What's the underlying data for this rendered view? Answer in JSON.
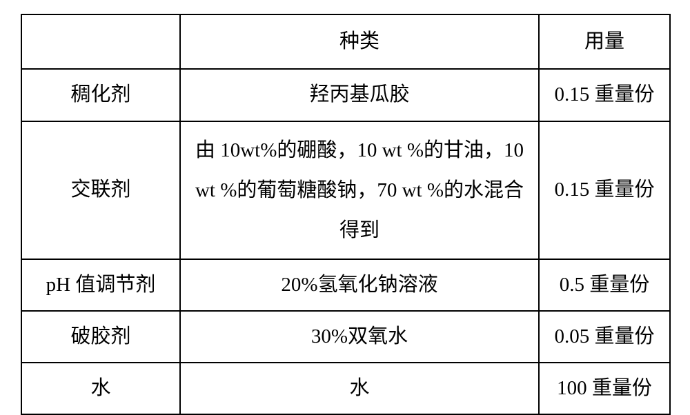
{
  "table": {
    "header": {
      "col1": "",
      "col2": "种类",
      "col3": "用量"
    },
    "rows": [
      {
        "col1": "稠化剂",
        "col2": "羟丙基瓜胶",
        "col3": "0.15 重量份"
      },
      {
        "col1": "交联剂",
        "col2": "由 10wt%的硼酸，10 wt %的甘油，10 wt %的葡萄糖酸钠，70 wt %的水混合得到",
        "col3": "0.15 重量份"
      },
      {
        "col1": "pH 值调节剂",
        "col2": "20%氢氧化钠溶液",
        "col3": "0.5 重量份"
      },
      {
        "col1": "破胶剂",
        "col2": "30%双氧水",
        "col3": "0.05 重量份"
      },
      {
        "col1": "水",
        "col2": "水",
        "col3": "100 重量份"
      }
    ],
    "columns_widths": [
      230,
      520,
      190
    ],
    "border_color": "#000000",
    "border_width": 2.5,
    "font_size": 29,
    "background_color": "#ffffff",
    "text_color": "#000000"
  }
}
